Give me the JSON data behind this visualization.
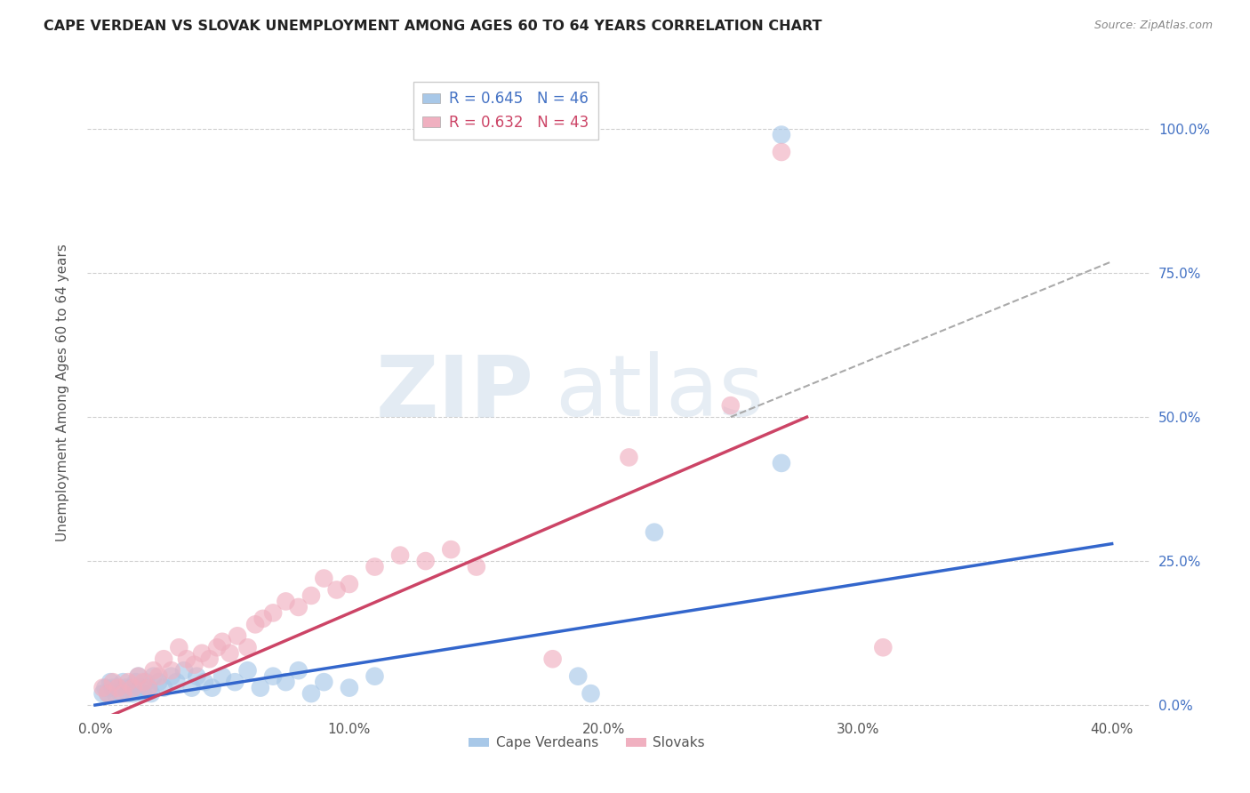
{
  "title": "CAPE VERDEAN VS SLOVAK UNEMPLOYMENT AMONG AGES 60 TO 64 YEARS CORRELATION CHART",
  "source": "Source: ZipAtlas.com",
  "ylabel": "Unemployment Among Ages 60 to 64 years",
  "xlabel_ticks": [
    "0.0%",
    "10.0%",
    "20.0%",
    "30.0%",
    "40.0%"
  ],
  "xlabel_vals": [
    0.0,
    0.1,
    0.2,
    0.3,
    0.4
  ],
  "ylabel_ticks": [
    "0.0%",
    "25.0%",
    "50.0%",
    "75.0%",
    "100.0%"
  ],
  "ylabel_vals": [
    0.0,
    0.25,
    0.5,
    0.75,
    1.0
  ],
  "xlim": [
    -0.003,
    0.415
  ],
  "ylim": [
    -0.015,
    1.1
  ],
  "blue_R": 0.645,
  "blue_N": 46,
  "pink_R": 0.632,
  "pink_N": 43,
  "blue_label": "Cape Verdeans",
  "pink_label": "Slovaks",
  "blue_color": "#a8c8e8",
  "pink_color": "#f0b0c0",
  "blue_line_color": "#3366cc",
  "pink_line_color": "#cc4466",
  "blue_scatter": [
    [
      0.003,
      0.02
    ],
    [
      0.004,
      0.03
    ],
    [
      0.005,
      0.02
    ],
    [
      0.006,
      0.04
    ],
    [
      0.007,
      0.03
    ],
    [
      0.008,
      0.02
    ],
    [
      0.009,
      0.03
    ],
    [
      0.01,
      0.02
    ],
    [
      0.011,
      0.04
    ],
    [
      0.012,
      0.03
    ],
    [
      0.013,
      0.02
    ],
    [
      0.014,
      0.03
    ],
    [
      0.015,
      0.02
    ],
    [
      0.016,
      0.04
    ],
    [
      0.017,
      0.05
    ],
    [
      0.018,
      0.03
    ],
    [
      0.019,
      0.02
    ],
    [
      0.02,
      0.04
    ],
    [
      0.021,
      0.03
    ],
    [
      0.022,
      0.02
    ],
    [
      0.023,
      0.05
    ],
    [
      0.025,
      0.04
    ],
    [
      0.027,
      0.03
    ],
    [
      0.03,
      0.05
    ],
    [
      0.032,
      0.04
    ],
    [
      0.035,
      0.06
    ],
    [
      0.038,
      0.03
    ],
    [
      0.04,
      0.05
    ],
    [
      0.043,
      0.04
    ],
    [
      0.046,
      0.03
    ],
    [
      0.05,
      0.05
    ],
    [
      0.055,
      0.04
    ],
    [
      0.06,
      0.06
    ],
    [
      0.065,
      0.03
    ],
    [
      0.07,
      0.05
    ],
    [
      0.075,
      0.04
    ],
    [
      0.08,
      0.06
    ],
    [
      0.085,
      0.02
    ],
    [
      0.09,
      0.04
    ],
    [
      0.1,
      0.03
    ],
    [
      0.11,
      0.05
    ],
    [
      0.19,
      0.05
    ],
    [
      0.195,
      0.02
    ],
    [
      0.22,
      0.3
    ],
    [
      0.27,
      0.42
    ],
    [
      0.27,
      0.99
    ]
  ],
  "pink_scatter": [
    [
      0.003,
      0.03
    ],
    [
      0.005,
      0.02
    ],
    [
      0.007,
      0.04
    ],
    [
      0.009,
      0.03
    ],
    [
      0.011,
      0.02
    ],
    [
      0.013,
      0.04
    ],
    [
      0.015,
      0.03
    ],
    [
      0.017,
      0.05
    ],
    [
      0.019,
      0.04
    ],
    [
      0.021,
      0.03
    ],
    [
      0.023,
      0.06
    ],
    [
      0.025,
      0.05
    ],
    [
      0.027,
      0.08
    ],
    [
      0.03,
      0.06
    ],
    [
      0.033,
      0.1
    ],
    [
      0.036,
      0.08
    ],
    [
      0.039,
      0.07
    ],
    [
      0.042,
      0.09
    ],
    [
      0.045,
      0.08
    ],
    [
      0.048,
      0.1
    ],
    [
      0.05,
      0.11
    ],
    [
      0.053,
      0.09
    ],
    [
      0.056,
      0.12
    ],
    [
      0.06,
      0.1
    ],
    [
      0.063,
      0.14
    ],
    [
      0.066,
      0.15
    ],
    [
      0.07,
      0.16
    ],
    [
      0.075,
      0.18
    ],
    [
      0.08,
      0.17
    ],
    [
      0.085,
      0.19
    ],
    [
      0.09,
      0.22
    ],
    [
      0.095,
      0.2
    ],
    [
      0.1,
      0.21
    ],
    [
      0.11,
      0.24
    ],
    [
      0.12,
      0.26
    ],
    [
      0.13,
      0.25
    ],
    [
      0.14,
      0.27
    ],
    [
      0.15,
      0.24
    ],
    [
      0.18,
      0.08
    ],
    [
      0.21,
      0.43
    ],
    [
      0.25,
      0.52
    ],
    [
      0.31,
      0.1
    ],
    [
      0.27,
      0.96
    ]
  ],
  "blue_regline": [
    0.0,
    0.0,
    0.4,
    0.28
  ],
  "pink_regline": [
    0.0,
    -0.03,
    0.28,
    0.5
  ],
  "dashed_line": [
    0.25,
    0.5,
    0.4,
    0.77
  ],
  "watermark_zip": "ZIP",
  "watermark_atlas": "atlas",
  "background_color": "#ffffff",
  "grid_color": "#d0d0d0"
}
